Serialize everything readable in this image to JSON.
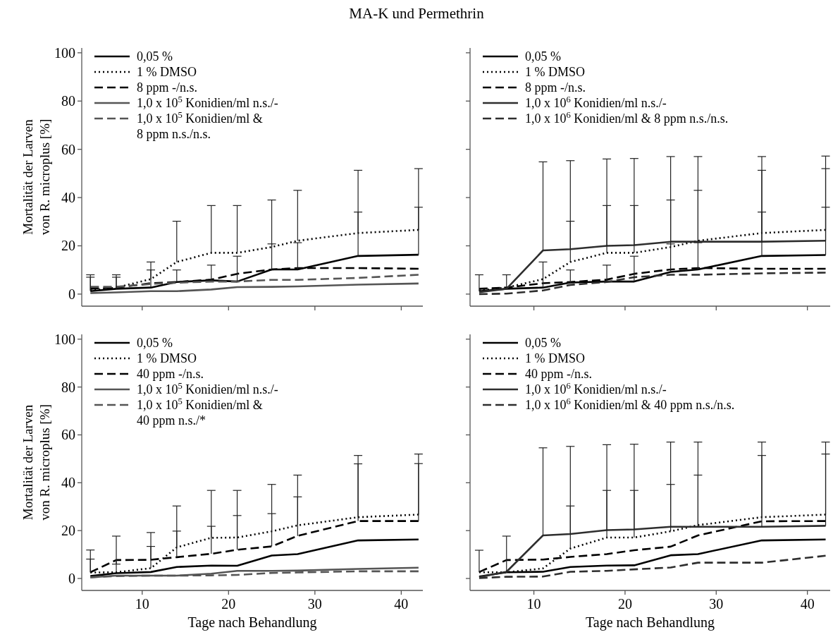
{
  "chart_data": [
    {
      "type": "line",
      "title": "MA-K und Permethrin",
      "ylabel": "Mortalität der Larven\nvon R. microplus [%]",
      "x": [
        4,
        7,
        11,
        14,
        18,
        21,
        25,
        28,
        35,
        42
      ],
      "xlim": [
        3,
        42.5
      ],
      "xticks": [
        10,
        20,
        30,
        40
      ],
      "ylim": [
        -5,
        102
      ],
      "yticks": [
        0,
        20,
        40,
        60,
        80,
        100
      ],
      "tick_labels": "y",
      "legend": "top left",
      "series": [
        {
          "name": "0,05 %",
          "color": "#000000",
          "line_style": "solid",
          "values": [
            1.2,
            2.2,
            2.7,
            5,
            5.7,
            5.2,
            10.2,
            10.2,
            15.8,
            16.3
          ],
          "errors": [
            [
              1.2,
              7
            ],
            [
              2.2,
              7
            ],
            [
              2.7,
              10
            ],
            [
              5,
              10
            ],
            [
              5.7,
              12
            ],
            [
              5.2,
              15.7
            ],
            [
              10.2,
              20.8
            ],
            [
              10.2,
              21.3
            ],
            [
              15.8,
              34
            ],
            [
              16.3,
              36
            ]
          ]
        },
        {
          "name": "1 % DMSO",
          "color": "#000000",
          "line_style": "dotted",
          "values": [
            1.5,
            2.7,
            6.2,
            13.3,
            17.1,
            17.1,
            19.5,
            22.1,
            25.3,
            26.6
          ],
          "errors": [
            [
              1.5,
              8
            ],
            [
              2.7,
              8
            ],
            [
              6.2,
              13.3
            ],
            [
              13.3,
              30.2
            ],
            [
              17.1,
              36.7
            ],
            [
              17.1,
              36.7
            ],
            [
              19.5,
              39
            ],
            [
              22.1,
              43
            ],
            [
              25.3,
              51.3
            ],
            [
              26.6,
              52
            ]
          ]
        },
        {
          "name": "8 ppm -/n.s.",
          "color": "#000000",
          "line_style": "dashed",
          "values": [
            2.2,
            2.7,
            4.5,
            5,
            6,
            8.4,
            10.2,
            10.8,
            10.8,
            10.5
          ]
        },
        {
          "name": "1,0 x 10$^{5}$ Konidien/ml n.s./-",
          "color": "#555555",
          "line_style": "solid",
          "values": [
            0.4,
            0.7,
            1.2,
            1.2,
            1.9,
            2.9,
            3,
            3.2,
            3.9,
            4.4
          ]
        },
        {
          "name": "1,0 x 10$^{5}$ Konidien/ml &\n8 ppm n.s./n.s.",
          "color": "#555555",
          "line_style": "dashed",
          "values": [
            3,
            3,
            4.2,
            4.7,
            5.2,
            5.2,
            5.9,
            5.9,
            6.7,
            8
          ]
        }
      ]
    },
    {
      "type": "line",
      "x": [
        4,
        7,
        11,
        14,
        18,
        21,
        25,
        28,
        35,
        42
      ],
      "xlim": [
        3,
        42.5
      ],
      "xticks": [
        10,
        20,
        30,
        40
      ],
      "ylim": [
        -5,
        102
      ],
      "yticks": [
        0,
        20,
        40,
        60,
        80,
        100
      ],
      "tick_labels": false,
      "legend": "top left",
      "series": [
        {
          "name": "0,05 %",
          "color": "#000000",
          "line_style": "solid",
          "values": [
            1.2,
            2.2,
            2.7,
            4.8,
            5.2,
            5.2,
            9.2,
            10.2,
            15.8,
            16.2
          ],
          "errors": [
            [
              1.2,
              8
            ],
            [
              2.2,
              8
            ],
            [
              2.7,
              13.3
            ],
            [
              4.8,
              10
            ],
            [
              5.2,
              12
            ],
            [
              5.2,
              15.7
            ],
            [
              9.2,
              20.8
            ],
            [
              10.2,
              21.3
            ],
            [
              15.8,
              34
            ],
            [
              16.2,
              36
            ]
          ]
        },
        {
          "name": "1 % DMSO",
          "color": "#000000",
          "line_style": "dotted",
          "values": [
            1.5,
            2.7,
            6.2,
            13.3,
            17.1,
            17.1,
            19.5,
            22.1,
            25.3,
            26.6
          ],
          "errors": [
            null,
            null,
            null,
            [
              13.3,
              30.2
            ],
            [
              17.1,
              36.7
            ],
            [
              17.1,
              36.7
            ],
            [
              19.5,
              39
            ],
            [
              22.1,
              43
            ],
            [
              25.3,
              51.3
            ],
            [
              26.6,
              52
            ]
          ]
        },
        {
          "name": "8 ppm -/n.s.",
          "color": "#000000",
          "line_style": "dashed",
          "values": [
            2.2,
            2.7,
            4.5,
            5,
            6,
            8.4,
            10.2,
            10.8,
            10.5,
            10.5
          ]
        },
        {
          "name": "1,0 x 10$^{6}$ Konidien/ml n.s./-",
          "color": "#2e2e2e",
          "line_style": "solid",
          "values": [
            0.8,
            2.2,
            18.1,
            18.6,
            20,
            20.3,
            21.7,
            21.7,
            21.7,
            22.1
          ],
          "errors": [
            null,
            null,
            [
              18.1,
              54.8
            ],
            [
              18.6,
              55.3
            ],
            [
              20,
              56
            ],
            [
              20.3,
              56.2
            ],
            [
              21.7,
              57
            ],
            [
              21.7,
              57
            ],
            [
              21.7,
              57
            ],
            [
              22.1,
              57.2
            ]
          ]
        },
        {
          "name": "1,0 x 10$^{6}$ Konidien/ml & 8 ppm n.s./n.s.",
          "color": "#2e2e2e",
          "line_style": "dashed",
          "values": [
            0,
            0.2,
            1.5,
            3.8,
            5,
            7,
            8,
            8,
            8.6,
            8.9
          ]
        }
      ]
    },
    {
      "type": "line",
      "xlabel": "Tage nach Behandlung",
      "ylabel": "Mortalität der Larven\nvon R. microplus [%]",
      "x": [
        4,
        7,
        11,
        14,
        18,
        21,
        25,
        28,
        35,
        42
      ],
      "xlim": [
        3,
        42.5
      ],
      "xticks": [
        10,
        20,
        30,
        40
      ],
      "ylim": [
        -5,
        102
      ],
      "yticks": [
        0,
        20,
        40,
        60,
        80,
        100
      ],
      "legend": "top left",
      "series": [
        {
          "name": "0,05 %",
          "color": "#000000",
          "line_style": "solid",
          "values": [
            1,
            2.2,
            2.7,
            4.8,
            5.4,
            5.3,
            9.6,
            10.2,
            15.9,
            16.3
          ]
        },
        {
          "name": "1 % DMSO",
          "color": "#000000",
          "line_style": "dotted",
          "values": [
            2.5,
            2.6,
            4.3,
            13,
            17,
            17.1,
            19.7,
            22.2,
            25.6,
            26.7
          ],
          "errors": [
            [
              2.5,
              11.9
            ],
            [
              2.6,
              17.7
            ],
            [
              4.3,
              19.2
            ],
            [
              13,
              30.3
            ],
            [
              17,
              36.8
            ],
            [
              17.1,
              36.8
            ],
            [
              19.7,
              39.3
            ],
            [
              22.2,
              43.2
            ],
            [
              25.6,
              51.4
            ],
            [
              26.7,
              52
            ]
          ]
        },
        {
          "name": "40 ppm -/n.s.",
          "color": "#000000",
          "line_style": "dashed",
          "values": [
            2.6,
            7.7,
            7.8,
            8.9,
            10.3,
            12,
            13.4,
            17.8,
            24,
            24
          ],
          "errors": [
            [
              2.6,
              8.1
            ],
            [
              7.7,
              6
            ],
            [
              7.8,
              13.4
            ],
            [
              8.9,
              19.8
            ],
            [
              10.3,
              21.8
            ],
            [
              12,
              26.3
            ],
            [
              13.4,
              27.1
            ],
            [
              17.8,
              34.1
            ],
            [
              24,
              47.9
            ],
            [
              24,
              48
            ]
          ]
        },
        {
          "name": "1,0 x 10$^{5}$ Konidien/ml n.s./-",
          "color": "#555555",
          "line_style": "solid",
          "values": [
            0.5,
            1.2,
            1.2,
            1.2,
            2,
            3.2,
            3.2,
            3.3,
            4,
            4.5
          ]
        },
        {
          "name": "1,0 x 10$^{5}$ Konidien/ml &\n40 ppm n.s./*",
          "color": "#555555",
          "line_style": "dashed",
          "values": [
            0.5,
            1,
            1.2,
            1.2,
            1.3,
            1.5,
            2.3,
            2.5,
            3,
            3
          ]
        }
      ]
    },
    {
      "type": "line",
      "xlabel": "Tage nach Behandlung",
      "x": [
        4,
        7,
        11,
        14,
        18,
        21,
        25,
        28,
        35,
        42
      ],
      "xlim": [
        3,
        42.5
      ],
      "xticks": [
        10,
        20,
        30,
        40
      ],
      "ylim": [
        -5,
        102
      ],
      "yticks": [
        0,
        20,
        40,
        60,
        80,
        100
      ],
      "tick_labels": "x",
      "legend": "top left",
      "series": [
        {
          "name": "0,05 %",
          "color": "#000000",
          "line_style": "solid",
          "values": [
            0.8,
            2.6,
            2.8,
            4.8,
            5.4,
            5.5,
            9.7,
            10.2,
            15.9,
            16.3
          ]
        },
        {
          "name": "1 % DMSO",
          "color": "#000000",
          "line_style": "dotted",
          "values": [
            2.6,
            2.6,
            4.2,
            12.5,
            17.1,
            17.1,
            19.7,
            22.3,
            25.6,
            26.7
          ],
          "errors": [
            [
              2.6,
              11.8
            ],
            [
              2.6,
              17.7
            ],
            null,
            [
              12.5,
              30.3
            ],
            [
              17.1,
              36.8
            ],
            [
              17.1,
              36.8
            ],
            [
              19.7,
              39.3
            ],
            [
              22.3,
              43.2
            ],
            [
              25.6,
              51.4
            ],
            [
              26.7,
              52
            ]
          ]
        },
        {
          "name": "40 ppm -/n.s.",
          "color": "#000000",
          "line_style": "dashed",
          "values": [
            2.7,
            7.7,
            7.9,
            9,
            10.2,
            11.8,
            13.3,
            18,
            23.9,
            24
          ]
        },
        {
          "name": "1,0 x 10$^{6}$ Konidien/ml n.s./-",
          "color": "#2e2e2e",
          "line_style": "solid",
          "values": [
            0.5,
            2.8,
            18,
            18.6,
            20.2,
            20.5,
            21.6,
            21.6,
            21.6,
            22
          ],
          "errors": [
            null,
            null,
            [
              18,
              54.6
            ],
            [
              18.6,
              55.2
            ],
            [
              20.2,
              55.9
            ],
            [
              20.5,
              56.1
            ],
            [
              21.6,
              57
            ],
            [
              21.6,
              57
            ],
            [
              21.6,
              57
            ],
            [
              22,
              57
            ]
          ]
        },
        {
          "name": "1,0 x 10$^{6}$ Konidien/ml & 40 ppm n.s./n.s.",
          "color": "#2e2e2e",
          "line_style": "dashed",
          "values": [
            0.2,
            0.7,
            0.8,
            2.8,
            3.2,
            3.8,
            4.6,
            6.6,
            6.6,
            9.5
          ]
        }
      ]
    }
  ]
}
